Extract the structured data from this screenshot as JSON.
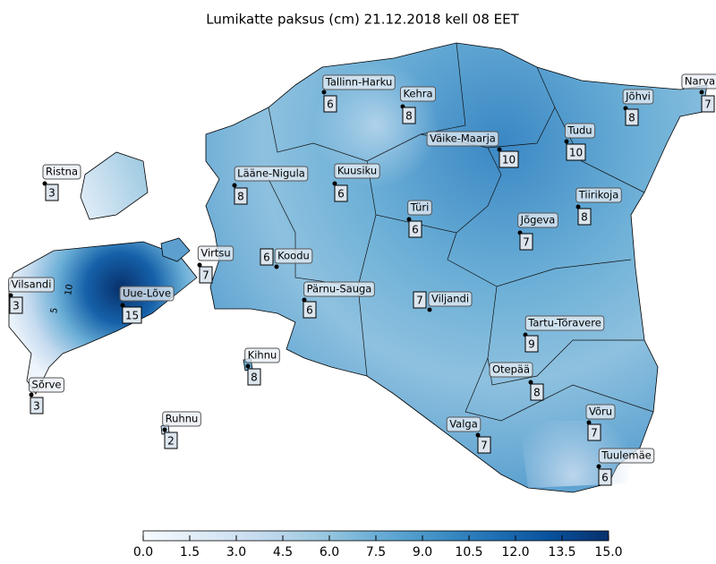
{
  "map": {
    "title": "Lumikatte paksus (cm) 21.12.2018 kell 08 EET",
    "contour_labels": [
      10,
      5
    ],
    "stations": [
      {
        "name": "Tallinn-Harku",
        "value": 6
      },
      {
        "name": "Kehra",
        "value": 8
      },
      {
        "name": "Narva",
        "value": 7
      },
      {
        "name": "Jõhvi",
        "value": 8
      },
      {
        "name": "Väike-Maarja",
        "value": 10
      },
      {
        "name": "Tudu",
        "value": 10
      },
      {
        "name": "Ristna",
        "value": 3
      },
      {
        "name": "Lääne-Nigula",
        "value": 8
      },
      {
        "name": "Kuusiku",
        "value": 6
      },
      {
        "name": "Türi",
        "value": 6
      },
      {
        "name": "Tiirikoja",
        "value": 8
      },
      {
        "name": "Jõgeva",
        "value": 7
      },
      {
        "name": "Virtsu",
        "value": 7
      },
      {
        "name": "Koodu",
        "value": 6
      },
      {
        "name": "Vilsandi",
        "value": 3
      },
      {
        "name": "Uue-Lõve",
        "value": 15
      },
      {
        "name": "Pärnu-Sauga",
        "value": 6
      },
      {
        "name": "Viljandi",
        "value": 7
      },
      {
        "name": "Tartu-Tõravere",
        "value": 9
      },
      {
        "name": "Kihnu",
        "value": 8
      },
      {
        "name": "Otepää",
        "value": 8
      },
      {
        "name": "Sõrve",
        "value": 3
      },
      {
        "name": "Valga",
        "value": 7
      },
      {
        "name": "Võru",
        "value": 7
      },
      {
        "name": "Ruhnu",
        "value": 2
      },
      {
        "name": "Tuulemäe",
        "value": 6
      }
    ],
    "colorbar": {
      "lim": [
        0,
        15
      ],
      "ticks": [
        {
          "value": 0,
          "label": "0.0"
        },
        {
          "value": 1.5,
          "label": "1.5"
        },
        {
          "value": 3,
          "label": "3.0"
        },
        {
          "value": 4.5,
          "label": "4.5"
        },
        {
          "value": 6,
          "label": "6.0"
        },
        {
          "value": 7.5,
          "label": "7.5"
        },
        {
          "value": 9,
          "label": "9.0"
        },
        {
          "value": 10.5,
          "label": "10.5"
        },
        {
          "value": 12,
          "label": "12.0"
        },
        {
          "value": 13.5,
          "label": "13.5"
        },
        {
          "value": 15,
          "label": "15.0"
        }
      ]
    }
  }
}
